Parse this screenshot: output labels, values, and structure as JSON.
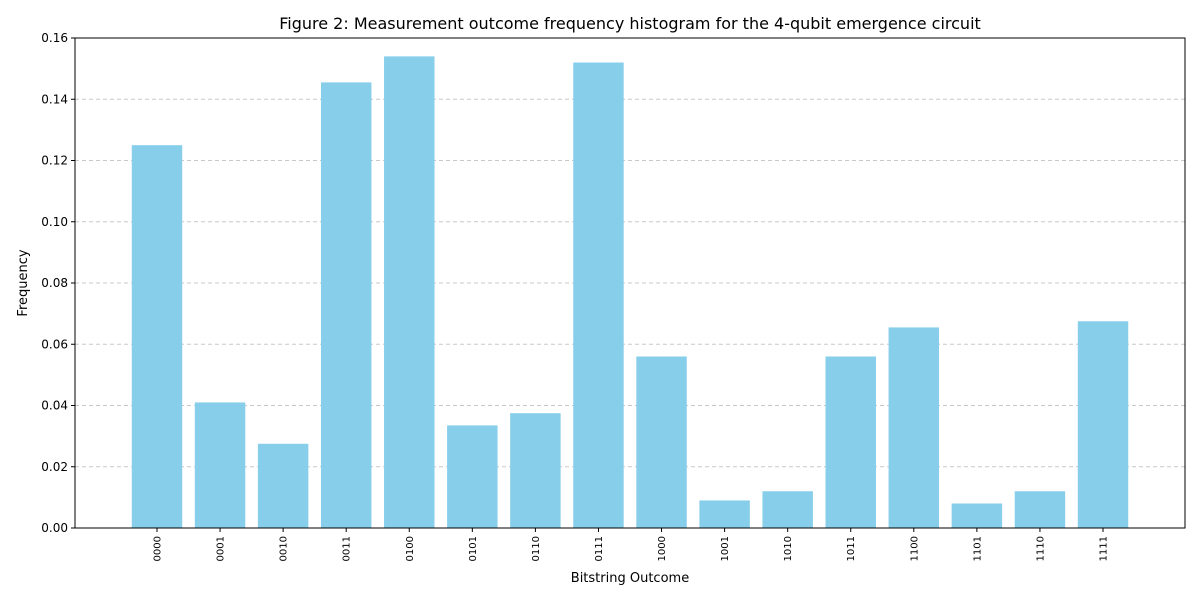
{
  "chart_data": {
    "type": "bar",
    "title": "Figure 2: Measurement outcome frequency histogram for the 4-qubit emergence circuit",
    "xlabel": "Bitstring Outcome",
    "ylabel": "Frequency",
    "categories": [
      "0000",
      "0001",
      "0010",
      "0011",
      "0100",
      "0101",
      "0110",
      "0111",
      "1000",
      "1001",
      "1010",
      "1011",
      "1100",
      "1101",
      "1110",
      "1111"
    ],
    "values": [
      0.125,
      0.041,
      0.0275,
      0.1455,
      0.154,
      0.0335,
      0.0375,
      0.152,
      0.056,
      0.009,
      0.012,
      0.056,
      0.0655,
      0.008,
      0.012,
      0.0675
    ],
    "ylim": [
      0,
      0.16
    ],
    "yticks": [
      "0.00",
      "0.02",
      "0.04",
      "0.06",
      "0.08",
      "0.10",
      "0.12",
      "0.14",
      "0.16"
    ],
    "grid": "y-dashed",
    "bar_color": "#87CEEB",
    "grid_color": "#c8c8c8"
  }
}
